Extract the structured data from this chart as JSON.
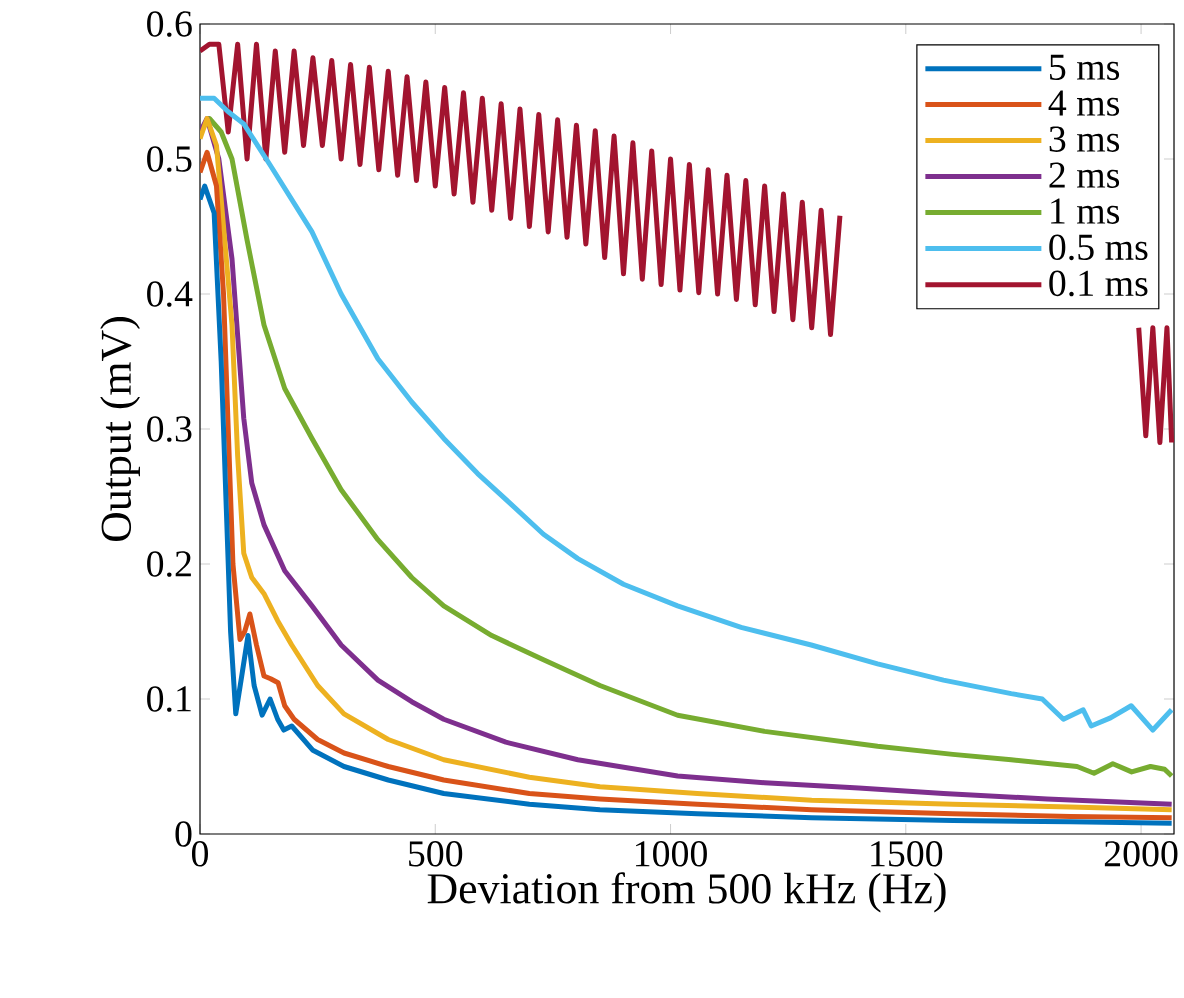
{
  "chart_data": {
    "type": "line",
    "xlabel": "Deviation from 500 kHz (Hz)",
    "ylabel": "Output (mV)",
    "xlim": [
      0,
      2070
    ],
    "ylim": [
      0,
      0.6
    ],
    "xticks": [
      0,
      500,
      1000,
      1500,
      2000
    ],
    "yticks": [
      0,
      0.1,
      0.2,
      0.3,
      0.4,
      0.5,
      0.6
    ],
    "legend": "top right",
    "series": [
      {
        "name": "5 ms",
        "color": "#0072bd",
        "x": [
          0,
          10,
          30,
          45,
          55,
          65,
          76,
          90,
          102,
          115,
          132,
          149,
          165,
          178,
          195,
          240,
          306,
          400,
          518,
          700,
          850,
          1057,
          1300,
          1600,
          1850,
          2065
        ],
        "values": [
          0.47,
          0.48,
          0.46,
          0.35,
          0.25,
          0.15,
          0.089,
          0.12,
          0.147,
          0.11,
          0.088,
          0.1,
          0.085,
          0.077,
          0.08,
          0.062,
          0.05,
          0.04,
          0.03,
          0.022,
          0.018,
          0.015,
          0.012,
          0.01,
          0.009,
          0.008
        ]
      },
      {
        "name": "4 ms",
        "color": "#d95319",
        "x": [
          0,
          15,
          35,
          50,
          60,
          70,
          85,
          95,
          106,
          120,
          136,
          150,
          166,
          180,
          200,
          250,
          306,
          400,
          518,
          700,
          850,
          1057,
          1300,
          1600,
          1850,
          2065
        ],
        "values": [
          0.49,
          0.505,
          0.48,
          0.4,
          0.3,
          0.2,
          0.144,
          0.15,
          0.163,
          0.14,
          0.117,
          0.115,
          0.112,
          0.095,
          0.085,
          0.07,
          0.06,
          0.05,
          0.04,
          0.03,
          0.026,
          0.022,
          0.018,
          0.015,
          0.013,
          0.012
        ]
      },
      {
        "name": "3 ms",
        "color": "#edb120",
        "x": [
          0,
          15,
          35,
          50,
          68,
          80,
          93,
          110,
          136,
          165,
          195,
          250,
          306,
          400,
          518,
          700,
          850,
          1057,
          1300,
          1600,
          1850,
          2065
        ],
        "values": [
          0.515,
          0.53,
          0.51,
          0.45,
          0.377,
          0.28,
          0.208,
          0.19,
          0.178,
          0.158,
          0.14,
          0.11,
          0.089,
          0.07,
          0.055,
          0.042,
          0.035,
          0.03,
          0.025,
          0.022,
          0.02,
          0.018
        ]
      },
      {
        "name": "2 ms",
        "color": "#7e2f8e",
        "x": [
          0,
          15,
          40,
          68,
          93,
          110,
          136,
          180,
          238,
          300,
          378,
          450,
          518,
          650,
          803,
          1015,
          1200,
          1400,
          1580,
          1800,
          2065
        ],
        "values": [
          0.52,
          0.53,
          0.5,
          0.426,
          0.308,
          0.26,
          0.229,
          0.195,
          0.169,
          0.14,
          0.114,
          0.098,
          0.085,
          0.068,
          0.055,
          0.043,
          0.038,
          0.034,
          0.03,
          0.026,
          0.022
        ]
      },
      {
        "name": "1 ms",
        "color": "#77ac30",
        "x": [
          0,
          20,
          45,
          68,
          100,
          136,
          180,
          238,
          300,
          378,
          450,
          518,
          620,
          730,
          850,
          1015,
          1200,
          1440,
          1600,
          1724,
          1864,
          1900,
          1940,
          1980,
          2020,
          2050,
          2065
        ],
        "values": [
          0.52,
          0.53,
          0.52,
          0.5,
          0.44,
          0.377,
          0.33,
          0.293,
          0.255,
          0.218,
          0.19,
          0.169,
          0.147,
          0.129,
          0.11,
          0.088,
          0.076,
          0.065,
          0.059,
          0.055,
          0.05,
          0.045,
          0.052,
          0.046,
          0.05,
          0.048,
          0.043
        ]
      },
      {
        "name": "0.5 ms",
        "color": "#4dbeee",
        "x": [
          0,
          30,
          60,
          93,
          150,
          238,
          300,
          378,
          450,
          518,
          590,
          662,
          730,
          803,
          900,
          1015,
          1150,
          1299,
          1440,
          1580,
          1724,
          1790,
          1835,
          1877,
          1894,
          1935,
          1979,
          2025,
          2065
        ],
        "values": [
          0.545,
          0.545,
          0.535,
          0.526,
          0.495,
          0.446,
          0.4,
          0.352,
          0.32,
          0.293,
          0.267,
          0.244,
          0.222,
          0.204,
          0.185,
          0.169,
          0.153,
          0.14,
          0.126,
          0.114,
          0.104,
          0.1,
          0.085,
          0.092,
          0.08,
          0.086,
          0.095,
          0.077,
          0.092
        ]
      },
      {
        "name": "0.1 ms",
        "color": "#a2142f",
        "x": [
          0,
          20,
          40,
          60,
          80,
          100,
          120,
          140,
          160,
          180,
          200,
          220,
          240,
          260,
          280,
          300,
          320,
          340,
          360,
          380,
          400,
          420,
          440,
          460,
          480,
          500,
          520,
          540,
          560,
          580,
          600,
          620,
          640,
          660,
          680,
          700,
          720,
          740,
          760,
          780,
          800,
          820,
          840,
          860,
          880,
          900,
          920,
          940,
          960,
          980,
          1000,
          1020,
          1040,
          1060,
          1080,
          1100,
          1120,
          1140,
          1160,
          1180,
          1200,
          1220,
          1240,
          1260,
          1280,
          1300,
          1320,
          1340,
          1360,
          1600,
          1995,
          2010,
          2025,
          2040,
          2055,
          2065
        ],
        "values": [
          0.58,
          0.585,
          0.585,
          0.52,
          0.585,
          0.5,
          0.585,
          0.5,
          0.58,
          0.505,
          0.58,
          0.51,
          0.575,
          0.51,
          0.573,
          0.5,
          0.57,
          0.496,
          0.568,
          0.492,
          0.565,
          0.488,
          0.561,
          0.484,
          0.557,
          0.48,
          0.553,
          0.474,
          0.549,
          0.468,
          0.545,
          0.462,
          0.541,
          0.456,
          0.537,
          0.45,
          0.533,
          0.446,
          0.529,
          0.442,
          0.525,
          0.437,
          0.521,
          0.427,
          0.517,
          0.415,
          0.512,
          0.411,
          0.506,
          0.407,
          0.5,
          0.403,
          0.496,
          0.401,
          0.492,
          0.4,
          0.488,
          0.396,
          0.484,
          0.392,
          0.48,
          0.387,
          0.474,
          0.381,
          0.468,
          0.375,
          0.462,
          0.37,
          0.458,
          null,
          0.375,
          0.295,
          0.375,
          0.29,
          0.375,
          0.29
        ]
      }
    ]
  }
}
